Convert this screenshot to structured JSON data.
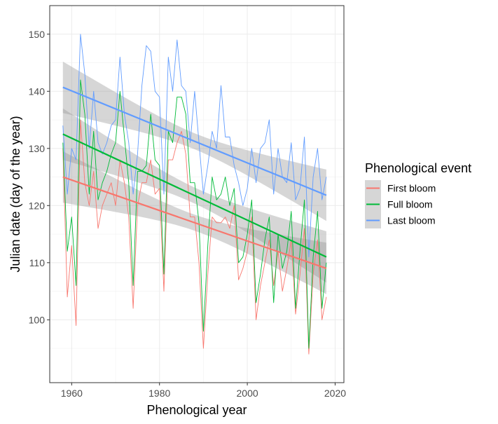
{
  "chart_data": {
    "type": "line",
    "xlabel": "Phenological year",
    "ylabel": "Julian date (day of the year)",
    "xlim": [
      1955,
      2022
    ],
    "ylim": [
      89,
      155
    ],
    "x_ticks": [
      1960,
      1980,
      2000,
      2020
    ],
    "y_ticks": [
      100,
      110,
      120,
      130,
      140,
      150
    ],
    "grid": true,
    "legend": {
      "title": "Phenological event",
      "placement": "right",
      "entries": [
        "First bloom",
        "Full bloom",
        "Last bloom"
      ]
    },
    "x": [
      1958,
      1959,
      1960,
      1961,
      1962,
      1963,
      1964,
      1965,
      1966,
      1967,
      1968,
      1969,
      1970,
      1971,
      1972,
      1973,
      1974,
      1975,
      1976,
      1977,
      1978,
      1979,
      1980,
      1981,
      1982,
      1983,
      1984,
      1985,
      1986,
      1987,
      1988,
      1989,
      1990,
      1991,
      1992,
      1993,
      1994,
      1995,
      1996,
      1997,
      1998,
      1999,
      2000,
      2001,
      2002,
      2003,
      2004,
      2005,
      2006,
      2007,
      2008,
      2009,
      2010,
      2011,
      2012,
      2013,
      2014,
      2015,
      2016,
      2017,
      2018
    ],
    "series": [
      {
        "name": "First bloom",
        "color": "#F8766D",
        "values": [
          130,
          104,
          113,
          99,
          135,
          124,
          120,
          126,
          116,
          120,
          122,
          124,
          120,
          128,
          124,
          118,
          102,
          120,
          124,
          124,
          128,
          122,
          123,
          105,
          128,
          128,
          131,
          133,
          129,
          118,
          118,
          110,
          95,
          108,
          118,
          117,
          117,
          118,
          116,
          120,
          107,
          109,
          112,
          118,
          100,
          106,
          110,
          114,
          106,
          112,
          105,
          109,
          114,
          101,
          108,
          116,
          94,
          108,
          114,
          100,
          104
        ],
        "trend": {
          "start": 125.0,
          "end": 109.0,
          "ci_halfwidth_ends": 4.5,
          "ci_halfwidth_mid": 1.4
        }
      },
      {
        "name": "Full bloom",
        "color": "#00BA38",
        "values": [
          131,
          112,
          118,
          106,
          142,
          136,
          122,
          133,
          121,
          124,
          126,
          129,
          131,
          140,
          132,
          124,
          106,
          126,
          126,
          127,
          136,
          128,
          127,
          108,
          133,
          131,
          139,
          139,
          136,
          124,
          124,
          117,
          98,
          113,
          125,
          121,
          122,
          125,
          120,
          123,
          110,
          111,
          115,
          121,
          103,
          108,
          114,
          118,
          103,
          115,
          109,
          112,
          119,
          102,
          112,
          121,
          95,
          111,
          119,
          102,
          110
        ],
        "trend": {
          "start": 132.5,
          "end": 111.0,
          "ci_halfwidth_ends": 4.5,
          "ci_halfwidth_mid": 1.4
        }
      },
      {
        "name": "Last bloom",
        "color": "#619CFF",
        "values": [
          134,
          122,
          130,
          128,
          150,
          143,
          130,
          140,
          131,
          129,
          131,
          134,
          135,
          146,
          136,
          131,
          122,
          129,
          141,
          148,
          147,
          140,
          139,
          122,
          146,
          140,
          149,
          141,
          140,
          131,
          140,
          131,
          122,
          127,
          133,
          130,
          141,
          132,
          132,
          127,
          124,
          120,
          123,
          130,
          124,
          130,
          131,
          135,
          122,
          130,
          125,
          124,
          131,
          121,
          123,
          132,
          111,
          125,
          130,
          121,
          125
        ],
        "trend": {
          "start": 140.7,
          "end": 121.8,
          "ci_halfwidth_ends": 4.5,
          "ci_halfwidth_mid": 1.4
        }
      }
    ]
  }
}
